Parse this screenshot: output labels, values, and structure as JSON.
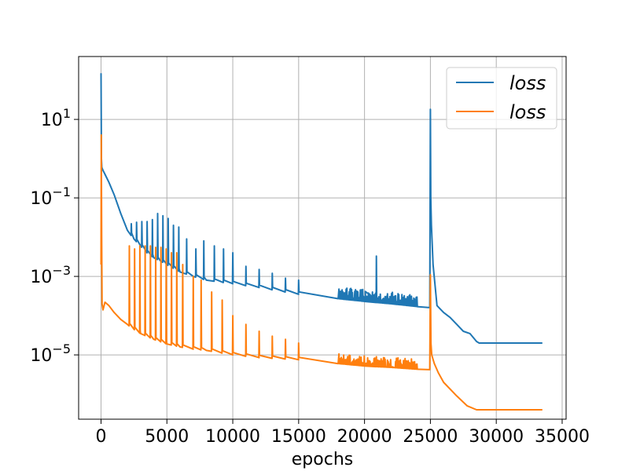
{
  "chart_data": {
    "type": "line",
    "title": "",
    "xlabel": "epochs",
    "ylabel": "",
    "xlim": [
      -1700,
      35300
    ],
    "ylim": [
      2.3e-07,
      400
    ],
    "yscale": "log",
    "grid": true,
    "legend_position": "top-right",
    "x_ticks": [
      0,
      5000,
      10000,
      15000,
      20000,
      25000,
      30000,
      35000
    ],
    "x_tick_labels": [
      "0",
      "5000",
      "10000",
      "15000",
      "20000",
      "25000",
      "30000",
      "35000"
    ],
    "y_ticks": [
      {
        "value": 10,
        "base": "10",
        "exp": "1"
      },
      {
        "value": 0.1,
        "base": "10",
        "exp": "−1"
      },
      {
        "value": 0.001,
        "base": "10",
        "exp": "−3"
      },
      {
        "value": 1e-05,
        "base": "10",
        "exp": "−5"
      }
    ],
    "series": [
      {
        "name": "loss",
        "color": "#1f77b4",
        "x": [
          0,
          30,
          60,
          150,
          300,
          600,
          1000,
          1500,
          2000,
          2500,
          3000,
          3500,
          4000,
          4500,
          5000,
          6000,
          7000,
          8000,
          10000,
          12000,
          15000,
          18000,
          20000,
          22000,
          24000,
          24950,
          25000,
          25030,
          25080,
          25200,
          25500,
          26000,
          26500,
          27000,
          27500,
          28000,
          28500,
          28700,
          30000,
          33500
        ],
        "y": [
          150,
          1.0,
          0.6,
          0.5,
          0.4,
          0.25,
          0.12,
          0.04,
          0.015,
          0.009,
          0.006,
          0.004,
          0.003,
          0.0025,
          0.002,
          0.0013,
          0.001,
          0.0008,
          0.00065,
          0.00052,
          0.00035,
          0.00027,
          0.00023,
          0.0002,
          0.00017,
          0.00016,
          18,
          0.1,
          0.02,
          0.002,
          0.00018,
          0.00012,
          9e-05,
          6e-05,
          4e-05,
          3.5e-05,
          2.2e-05,
          2e-05,
          2e-05,
          2e-05
        ],
        "spikes": [
          [
            2300,
            0.022
          ],
          [
            2700,
            0.024
          ],
          [
            3100,
            0.025
          ],
          [
            3500,
            0.025
          ],
          [
            3900,
            0.028
          ],
          [
            4300,
            0.04
          ],
          [
            4700,
            0.035
          ],
          [
            5100,
            0.03
          ],
          [
            5500,
            0.02
          ],
          [
            5900,
            0.018
          ],
          [
            6500,
            0.009
          ],
          [
            7200,
            0.005
          ],
          [
            7800,
            0.008
          ],
          [
            8600,
            0.006
          ],
          [
            9300,
            0.005
          ],
          [
            10000,
            0.004
          ],
          [
            11000,
            0.0018
          ],
          [
            12000,
            0.0015
          ],
          [
            13000,
            0.0012
          ],
          [
            14000,
            0.0009
          ],
          [
            15000,
            0.0008
          ],
          [
            20900,
            0.0033
          ]
        ],
        "noise": {
          "from": 15800,
          "to": 24900,
          "amplitude": 2.0
        }
      },
      {
        "name": "loss",
        "color": "#ff7f0e",
        "x": [
          0,
          20,
          50,
          80,
          150,
          300,
          600,
          1000,
          1500,
          2000,
          2500,
          3000,
          4000,
          5000,
          6000,
          7000,
          8000,
          10000,
          12000,
          15000,
          18000,
          20000,
          22000,
          24000,
          24950,
          25000,
          25040,
          25100,
          25300,
          25600,
          26000,
          27000,
          27800,
          28500,
          30000,
          33500
        ],
        "y": [
          0.002,
          4,
          0.01,
          0.0002,
          0.00014,
          0.00022,
          0.00018,
          0.00012,
          8e-05,
          6e-05,
          4.5e-05,
          3.5e-05,
          2.5e-05,
          1.9e-05,
          1.6e-05,
          1.4e-05,
          1.3e-05,
          1e-05,
          8.5e-06,
          7.5e-06,
          6e-06,
          5.2e-06,
          4.8e-06,
          4.3e-06,
          4.2e-06,
          0.0011,
          2e-05,
          1e-05,
          6e-06,
          3.5e-06,
          2e-06,
          9e-07,
          5e-07,
          4e-07,
          4e-07,
          4e-07
        ],
        "spikes": [
          [
            2150,
            0.006
          ],
          [
            2550,
            0.005
          ],
          [
            2950,
            0.006
          ],
          [
            3350,
            0.006
          ],
          [
            3750,
            0.006
          ],
          [
            4150,
            0.0055
          ],
          [
            4550,
            0.0055
          ],
          [
            4950,
            0.005
          ],
          [
            5350,
            0.004
          ],
          [
            5750,
            0.004
          ],
          [
            6200,
            0.002
          ],
          [
            7000,
            0.001
          ],
          [
            7600,
            0.0008
          ],
          [
            8400,
            0.0004
          ],
          [
            9200,
            0.00025
          ],
          [
            10000,
            0.0001
          ],
          [
            11000,
            6e-05
          ],
          [
            12000,
            4e-05
          ],
          [
            13000,
            3e-05
          ],
          [
            14000,
            2.5e-05
          ],
          [
            15000,
            2e-05
          ],
          [
            20900,
            9e-06
          ]
        ],
        "noise": {
          "from": 15800,
          "to": 24900,
          "amplitude": 1.8
        }
      }
    ]
  }
}
